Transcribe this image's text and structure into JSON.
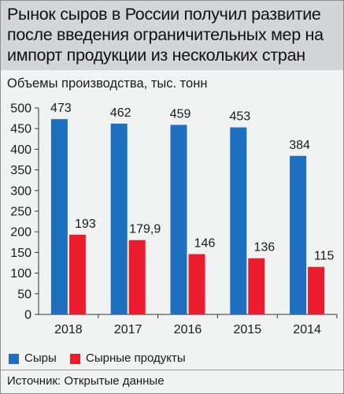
{
  "title": "Рынок сыров в России получил развитие после введения ограничительных мер на импорт продукции из нескольких стран",
  "subtitle": "Объемы производства, тыс. тонн",
  "source": "Источник: Открытые данные",
  "colors": {
    "cheese": "#1f6fc0",
    "cheese_products": "#ea1c2d"
  },
  "chart_data": {
    "type": "bar",
    "categories": [
      "2018",
      "2017",
      "2016",
      "2015",
      "2014"
    ],
    "series": [
      {
        "name": "Сыры",
        "values": [
          473,
          462,
          459,
          453,
          384
        ],
        "labels": [
          "473",
          "462",
          "459",
          "453",
          "384"
        ]
      },
      {
        "name": "Сырные продукты",
        "values": [
          193,
          179.9,
          146,
          136,
          115
        ],
        "labels": [
          "193",
          "179,9",
          "146",
          "136",
          "115"
        ]
      }
    ],
    "ylim": [
      0,
      500
    ],
    "yticks": [
      "0",
      "50",
      "100",
      "150",
      "200",
      "250",
      "300",
      "350",
      "400",
      "450",
      "500"
    ],
    "grid": false,
    "legend": "bottom-left"
  }
}
